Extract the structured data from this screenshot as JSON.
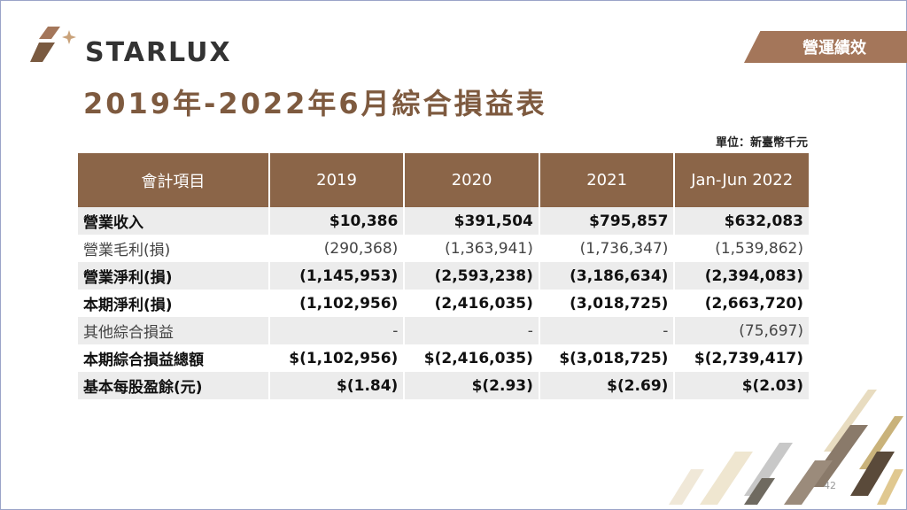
{
  "brand": {
    "name": "STARLUX"
  },
  "section": {
    "label": "營運績效"
  },
  "title": "2019年-2022年6月綜合損益表",
  "unit": "單位：新臺幣千元",
  "table": {
    "headers": [
      "會計項目",
      "2019",
      "2020",
      "2021",
      "Jan-Jun 2022"
    ],
    "rows": [
      {
        "label": "營業收入",
        "values": [
          "$10,386",
          "$391,504",
          "$795,857",
          "$632,083"
        ]
      },
      {
        "label": "營業毛利(損)",
        "values": [
          "(290,368)",
          "(1,363,941)",
          "(1,736,347)",
          "(1,539,862)"
        ]
      },
      {
        "label": "營業淨利(損)",
        "values": [
          "(1,145,953)",
          "(2,593,238)",
          "(3,186,634)",
          "(2,394,083)"
        ]
      },
      {
        "label": "本期淨利(損)",
        "values": [
          "(1,102,956)",
          "(2,416,035)",
          "(3,018,725)",
          "(2,663,720)"
        ]
      },
      {
        "label": "其他綜合損益",
        "values": [
          "-",
          "-",
          "-",
          "(75,697)"
        ]
      },
      {
        "label": "本期綜合損益總額",
        "values": [
          "$(1,102,956)",
          "$(2,416,035)",
          "$(3,018,725)",
          "$(2,739,417)"
        ]
      },
      {
        "label": "基本每股盈餘(元)",
        "values": [
          "$(1.84)",
          "$(2.93)",
          "$(2.69)",
          "$(2.03)"
        ]
      }
    ]
  },
  "page_number": "42",
  "colors": {
    "header_brown": "#8b6548",
    "title_brown": "#7e5a3f",
    "tab_brown": "#a4765a",
    "row_shade": "#ececec"
  }
}
